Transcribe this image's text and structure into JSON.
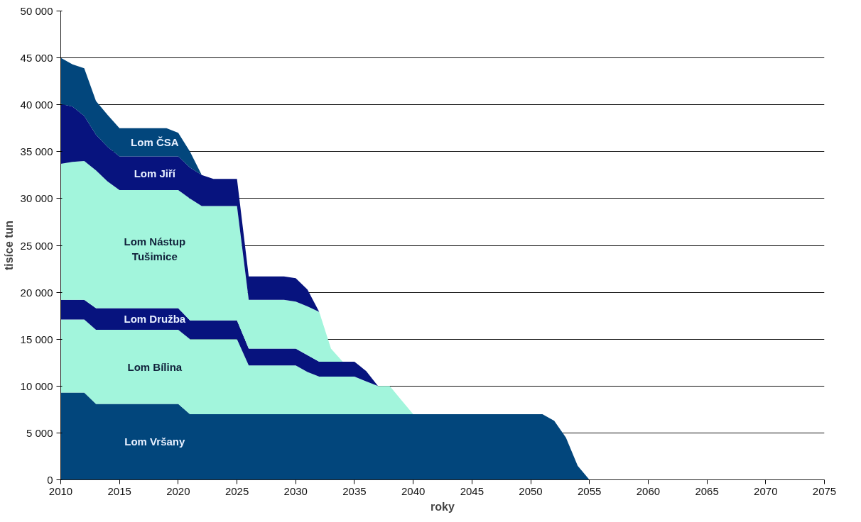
{
  "chart_data": {
    "type": "area",
    "stacked": true,
    "xlabel": "roky",
    "ylabel": "tisíce tun",
    "x": [
      2010,
      2011,
      2012,
      2013,
      2014,
      2015,
      2016,
      2017,
      2018,
      2019,
      2020,
      2021,
      2022,
      2023,
      2024,
      2025,
      2026,
      2027,
      2028,
      2029,
      2030,
      2031,
      2032,
      2033,
      2034,
      2035,
      2036,
      2037,
      2038,
      2039,
      2040,
      2041,
      2042,
      2043,
      2044,
      2045,
      2046,
      2047,
      2048,
      2049,
      2050,
      2051,
      2052,
      2053,
      2054,
      2055
    ],
    "series": [
      {
        "name": "Lom Vršany",
        "color": "#02467c",
        "values": [
          9300,
          9300,
          9300,
          8100,
          8100,
          8100,
          8100,
          8100,
          8100,
          8100,
          8100,
          7000,
          7000,
          7000,
          7000,
          7000,
          7000,
          7000,
          7000,
          7000,
          7000,
          7000,
          7000,
          7000,
          7000,
          7000,
          7000,
          7000,
          7000,
          7000,
          7000,
          7000,
          7000,
          7000,
          7000,
          7000,
          7000,
          7000,
          7000,
          7000,
          7000,
          7000,
          6300,
          4500,
          1500,
          0
        ]
      },
      {
        "name": "Lom Bílina",
        "color": "#a2f5dc",
        "values": [
          7800,
          7800,
          7800,
          7900,
          7900,
          7900,
          7900,
          7900,
          7900,
          7900,
          7900,
          8000,
          8000,
          8000,
          8000,
          8000,
          5200,
          5200,
          5200,
          5200,
          5200,
          4500,
          4000,
          4000,
          4000,
          4000,
          3500,
          3000,
          3000,
          1500,
          0,
          0,
          0,
          0,
          0,
          0,
          0,
          0,
          0,
          0,
          0,
          0,
          0,
          0,
          0,
          0
        ]
      },
      {
        "name": "Lom Družba",
        "color": "#07137e",
        "values": [
          2100,
          2100,
          2100,
          2300,
          2300,
          2300,
          2300,
          2300,
          2300,
          2300,
          2300,
          2000,
          2000,
          2000,
          2000,
          2000,
          1800,
          1800,
          1800,
          1800,
          1800,
          1800,
          1600,
          1600,
          1600,
          1600,
          1100,
          0,
          0,
          0,
          0,
          0,
          0,
          0,
          0,
          0,
          0,
          0,
          0,
          0,
          0,
          0,
          0,
          0,
          0,
          0
        ]
      },
      {
        "name": "Lom Nástup\nTušimice",
        "color": "#a2f5dc",
        "values": [
          14500,
          14700,
          14800,
          14700,
          13500,
          12600,
          12600,
          12600,
          12600,
          12600,
          12600,
          13000,
          12200,
          12200,
          12200,
          12200,
          5200,
          5200,
          5200,
          5200,
          5000,
          5200,
          5300,
          1400,
          0,
          0,
          0,
          0,
          0,
          0,
          0,
          0,
          0,
          0,
          0,
          0,
          0,
          0,
          0,
          0,
          0,
          0,
          0,
          0,
          0,
          0
        ]
      },
      {
        "name": "Lom Jiří",
        "color": "#07137e",
        "values": [
          6400,
          5900,
          4800,
          3800,
          3700,
          3600,
          3600,
          3600,
          3600,
          3600,
          3600,
          3300,
          3300,
          2900,
          2900,
          2900,
          2500,
          2500,
          2500,
          2500,
          2500,
          1800,
          0,
          0,
          0,
          0,
          0,
          0,
          0,
          0,
          0,
          0,
          0,
          0,
          0,
          0,
          0,
          0,
          0,
          0,
          0,
          0,
          0,
          0,
          0,
          0
        ]
      },
      {
        "name": "Lom ČSA",
        "color": "#02467c",
        "values": [
          4900,
          4500,
          5100,
          3600,
          3400,
          3000,
          3000,
          3000,
          3000,
          3000,
          2500,
          1700,
          0,
          0,
          0,
          0,
          0,
          0,
          0,
          0,
          0,
          0,
          0,
          0,
          0,
          0,
          0,
          0,
          0,
          0,
          0,
          0,
          0,
          0,
          0,
          0,
          0,
          0,
          0,
          0,
          0,
          0,
          0,
          0,
          0,
          0
        ]
      }
    ],
    "xlim": [
      2010,
      2075
    ],
    "xticks": [
      2010,
      2015,
      2020,
      2025,
      2030,
      2035,
      2040,
      2045,
      2050,
      2055,
      2060,
      2065,
      2070,
      2075
    ],
    "ylim": [
      0,
      50000
    ],
    "yticks": [
      {
        "value": 0,
        "label": "0"
      },
      {
        "value": 5000,
        "label": "5 000"
      },
      {
        "value": 10000,
        "label": "10 000"
      },
      {
        "value": 15000,
        "label": "15 000"
      },
      {
        "value": 20000,
        "label": "20 000"
      },
      {
        "value": 25000,
        "label": "25 000"
      },
      {
        "value": 30000,
        "label": "30 000"
      },
      {
        "value": 35000,
        "label": "35 000"
      },
      {
        "value": 40000,
        "label": "40 000"
      },
      {
        "value": 45000,
        "label": "45 000"
      },
      {
        "value": 50000,
        "label": "50 000"
      }
    ],
    "grid": "y",
    "legend": false
  }
}
